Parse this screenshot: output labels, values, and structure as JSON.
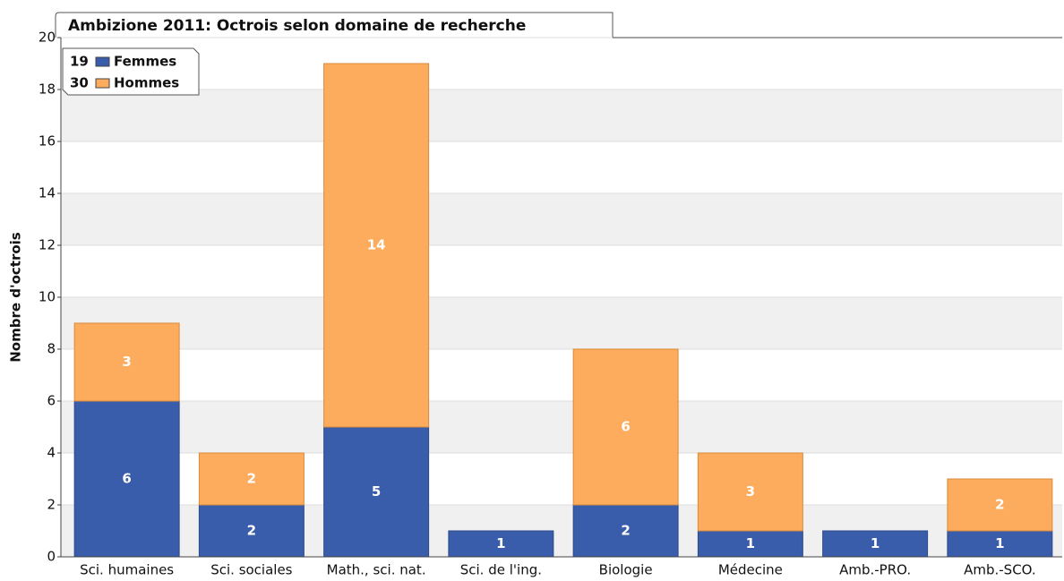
{
  "chart_data": {
    "type": "stacked_bar",
    "title": "Ambizione 2011: Octrois selon domaine de recherche",
    "y_label": "Nombre d'octrois",
    "categories": [
      "Sci. humaines",
      "Sci. sociales",
      "Math., sci. nat.",
      "Sci. de l'ing.",
      "Biologie",
      "Médecine",
      "Amb.-PRO.",
      "Amb.-SCO."
    ],
    "series": [
      {
        "name": "Femmes",
        "total": 19,
        "color": "#3a5dab",
        "values": [
          6,
          2,
          5,
          1,
          2,
          1,
          1,
          1
        ]
      },
      {
        "name": "Hommes",
        "total": 30,
        "color": "#fdac5d",
        "values": [
          3,
          2,
          14,
          0,
          6,
          3,
          0,
          2
        ]
      }
    ],
    "ylim": [
      0,
      20
    ],
    "yticks": [
      0,
      2,
      4,
      6,
      8,
      10,
      12,
      14,
      16,
      18,
      20
    ],
    "grid": true,
    "legend": "top-left"
  }
}
